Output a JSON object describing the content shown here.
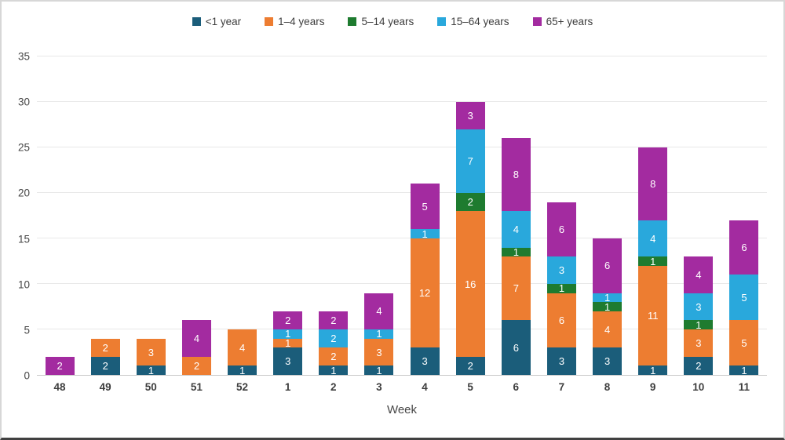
{
  "chart_data": {
    "type": "bar",
    "stacked": true,
    "xlabel": "Week",
    "ylim": [
      0,
      35
    ],
    "ytick_step": 5,
    "grid": true,
    "legend_position": "top",
    "categories": [
      "48",
      "49",
      "50",
      "51",
      "52",
      "1",
      "2",
      "3",
      "4",
      "5",
      "6",
      "7",
      "8",
      "9",
      "10",
      "11"
    ],
    "series": [
      {
        "name": "<1 year",
        "color": "#1b5d7a",
        "values": [
          0,
          2,
          1,
          0,
          1,
          3,
          1,
          1,
          3,
          2,
          6,
          3,
          3,
          1,
          2,
          1
        ]
      },
      {
        "name": "1–4 years",
        "color": "#ed7d31",
        "values": [
          0,
          2,
          3,
          2,
          4,
          1,
          2,
          3,
          12,
          16,
          7,
          6,
          4,
          11,
          3,
          5
        ]
      },
      {
        "name": "5–14 years",
        "color": "#1e7b2f",
        "values": [
          0,
          0,
          0,
          0,
          0,
          0,
          0,
          0,
          0,
          2,
          1,
          1,
          1,
          1,
          1,
          0
        ]
      },
      {
        "name": "15–64 years",
        "color": "#29a8dc",
        "values": [
          0,
          0,
          0,
          0,
          0,
          1,
          2,
          1,
          1,
          7,
          4,
          3,
          1,
          4,
          3,
          5
        ]
      },
      {
        "name": "65+ years",
        "color": "#a32ba0",
        "values": [
          2,
          0,
          0,
          4,
          0,
          2,
          2,
          4,
          5,
          3,
          8,
          6,
          6,
          8,
          4,
          6
        ]
      }
    ],
    "totals": [
      2,
      4,
      4,
      6,
      5,
      7,
      7,
      9,
      21,
      30,
      26,
      19,
      15,
      25,
      13,
      17
    ]
  }
}
